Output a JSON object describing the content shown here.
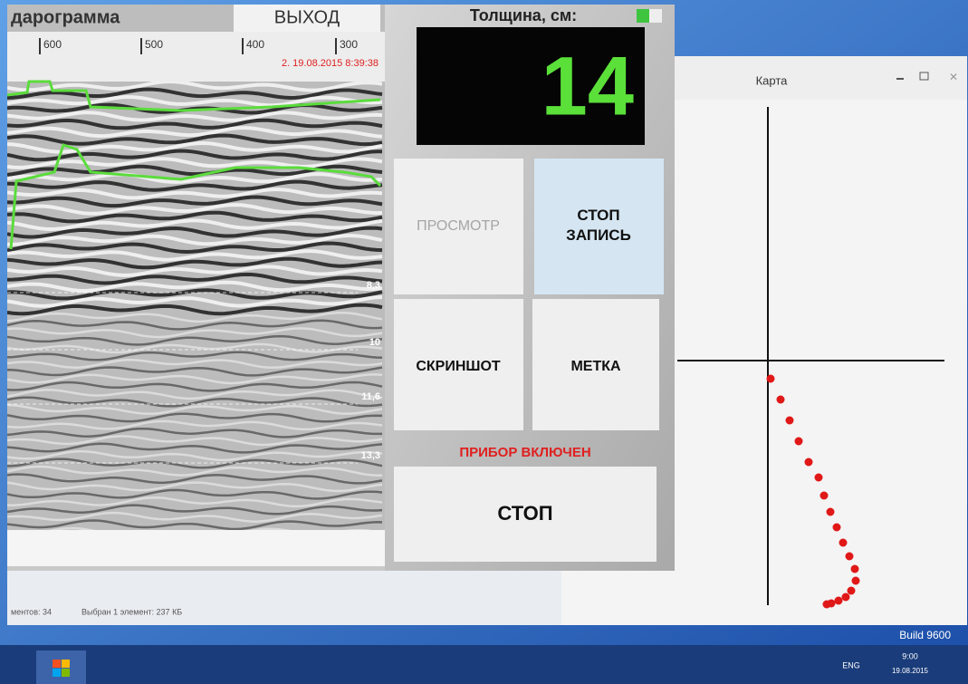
{
  "radargram": {
    "title": "дарограмма",
    "exit_button": "ВЫХОД",
    "scale_ticks": [
      "600",
      "500",
      "400",
      "300"
    ],
    "timestamp": "2. 19.08.2015 8:39:38",
    "depth_labels": [
      "8,3",
      "10",
      "11,6",
      "13,3"
    ]
  },
  "controls": {
    "thickness_label": "Толщина, см:",
    "thickness_value": "14",
    "buttons": [
      "ПРОСМОТР",
      "СТОП ЗАПИСЬ",
      "СКРИНШОТ",
      "МЕТКА"
    ],
    "status": "ПРИБОР ВКЛЮЧЕН",
    "stop_button": "СТОП"
  },
  "map_window": {
    "title": "Карта"
  },
  "explorer": {
    "items_count": "ментов: 34",
    "selection": "Выбран 1 элемент: 237 КБ"
  },
  "desktop": {
    "build": "Build 9600",
    "language": "ENG",
    "time": "9:00",
    "date": "19.08.2015"
  }
}
